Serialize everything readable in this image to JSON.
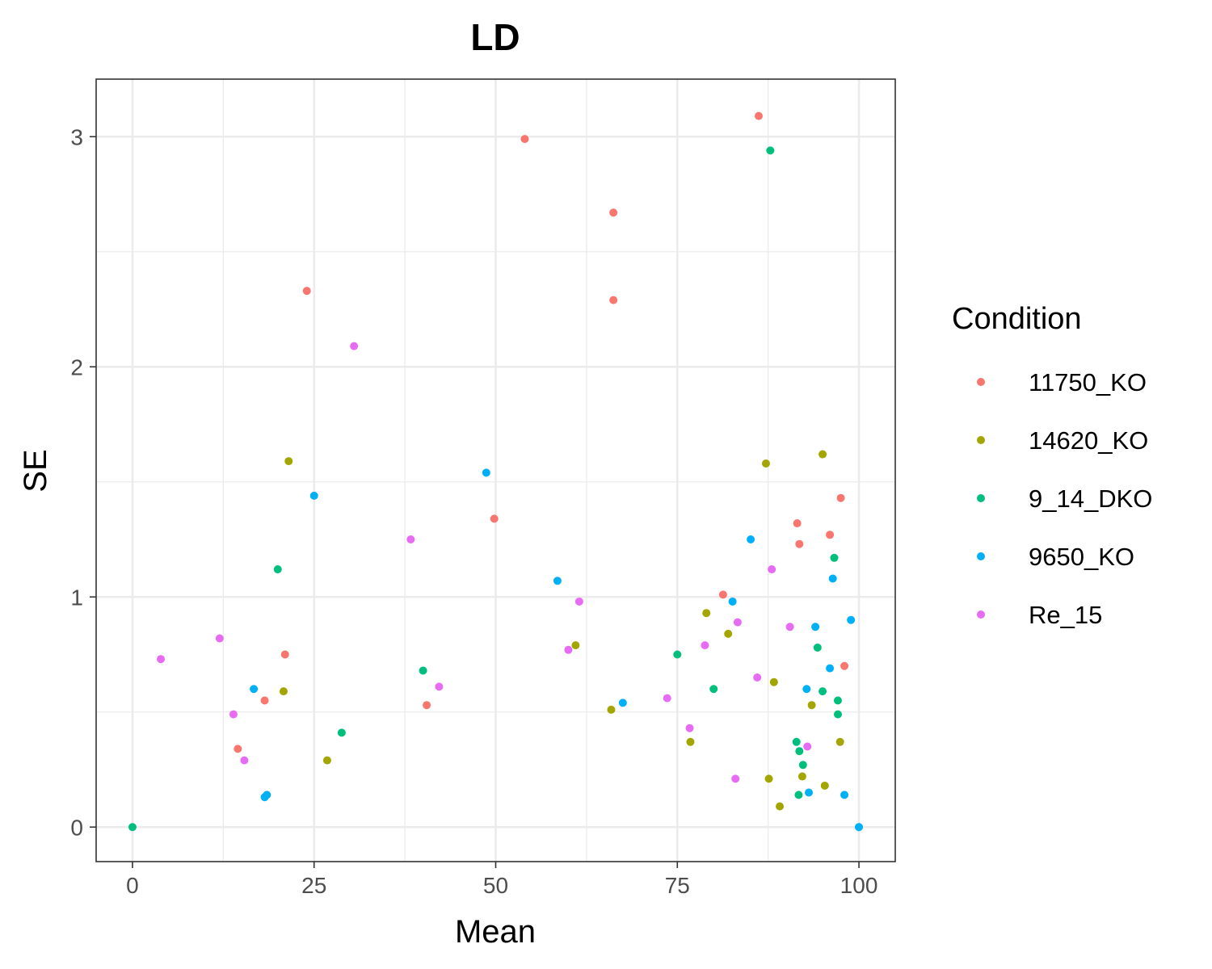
{
  "chart_data": {
    "type": "scatter",
    "title": "LD",
    "xlabel": "Mean",
    "ylabel": "SE",
    "xlim": [
      -5,
      105
    ],
    "ylim": [
      -0.15,
      3.25
    ],
    "x_ticks": [
      0,
      25,
      50,
      75,
      100
    ],
    "y_ticks": [
      0,
      1,
      2,
      3
    ],
    "x_tick_labels": [
      "0",
      "25",
      "50",
      "75",
      "100"
    ],
    "y_tick_labels": [
      "0",
      "1",
      "2",
      "3"
    ],
    "grid": true,
    "legend": {
      "title": "Condition",
      "position": "right"
    },
    "series": [
      {
        "name": "11750_KO",
        "color": "#F8766D",
        "points": [
          [
            86.2,
            3.09
          ],
          [
            54.0,
            2.99
          ],
          [
            66.2,
            2.67
          ],
          [
            66.2,
            2.29
          ],
          [
            24.0,
            2.33
          ],
          [
            49.8,
            1.34
          ],
          [
            21.0,
            0.75
          ],
          [
            18.2,
            0.55
          ],
          [
            14.5,
            0.34
          ],
          [
            40.5,
            0.53
          ],
          [
            81.3,
            1.01
          ],
          [
            91.5,
            1.32
          ],
          [
            91.8,
            1.23
          ],
          [
            96.0,
            1.27
          ],
          [
            97.5,
            1.43
          ],
          [
            98.0,
            0.7
          ]
        ]
      },
      {
        "name": "14620_KO",
        "color": "#A3A500",
        "points": [
          [
            21.5,
            1.59
          ],
          [
            20.8,
            0.59
          ],
          [
            26.8,
            0.29
          ],
          [
            61.0,
            0.79
          ],
          [
            65.9,
            0.51
          ],
          [
            79.0,
            0.93
          ],
          [
            82.0,
            0.84
          ],
          [
            76.8,
            0.37
          ],
          [
            87.2,
            1.58
          ],
          [
            88.3,
            0.63
          ],
          [
            95.0,
            1.62
          ],
          [
            87.6,
            0.21
          ],
          [
            89.1,
            0.09
          ],
          [
            92.2,
            0.22
          ],
          [
            93.5,
            0.53
          ],
          [
            95.3,
            0.18
          ],
          [
            97.4,
            0.37
          ]
        ]
      },
      {
        "name": "9_14_DKO",
        "color": "#00BF7D",
        "points": [
          [
            0.0,
            0.0
          ],
          [
            20.0,
            1.12
          ],
          [
            28.8,
            0.41
          ],
          [
            40.0,
            0.68
          ],
          [
            75.0,
            0.75
          ],
          [
            80.0,
            0.6
          ],
          [
            87.8,
            2.94
          ],
          [
            91.4,
            0.37
          ],
          [
            91.8,
            0.33
          ],
          [
            92.3,
            0.27
          ],
          [
            91.7,
            0.14
          ],
          [
            94.3,
            0.78
          ],
          [
            95.0,
            0.59
          ],
          [
            96.6,
            1.17
          ],
          [
            97.1,
            0.55
          ],
          [
            97.1,
            0.49
          ],
          [
            100.0,
            0.0
          ]
        ]
      },
      {
        "name": "9650_KO",
        "color": "#00B0F6",
        "points": [
          [
            16.7,
            0.6
          ],
          [
            18.2,
            0.13
          ],
          [
            18.5,
            0.14
          ],
          [
            25.0,
            1.44
          ],
          [
            48.7,
            1.54
          ],
          [
            58.5,
            1.07
          ],
          [
            67.5,
            0.54
          ],
          [
            85.1,
            1.25
          ],
          [
            82.6,
            0.98
          ],
          [
            92.8,
            0.6
          ],
          [
            93.1,
            0.15
          ],
          [
            94.0,
            0.87
          ],
          [
            96.0,
            0.69
          ],
          [
            96.4,
            1.08
          ],
          [
            98.0,
            0.14
          ],
          [
            98.9,
            0.9
          ],
          [
            100.0,
            0.0
          ]
        ]
      },
      {
        "name": "Re_15",
        "color": "#E76BF3",
        "points": [
          [
            3.9,
            0.73
          ],
          [
            12.0,
            0.82
          ],
          [
            13.9,
            0.49
          ],
          [
            15.4,
            0.29
          ],
          [
            30.5,
            2.09
          ],
          [
            38.3,
            1.25
          ],
          [
            42.2,
            0.61
          ],
          [
            60.0,
            0.77
          ],
          [
            61.5,
            0.98
          ],
          [
            73.6,
            0.56
          ],
          [
            76.7,
            0.43
          ],
          [
            78.8,
            0.79
          ],
          [
            83.3,
            0.89
          ],
          [
            83.0,
            0.21
          ],
          [
            86.0,
            0.65
          ],
          [
            88.0,
            1.12
          ],
          [
            90.5,
            0.87
          ],
          [
            92.9,
            0.35
          ]
        ]
      }
    ]
  }
}
